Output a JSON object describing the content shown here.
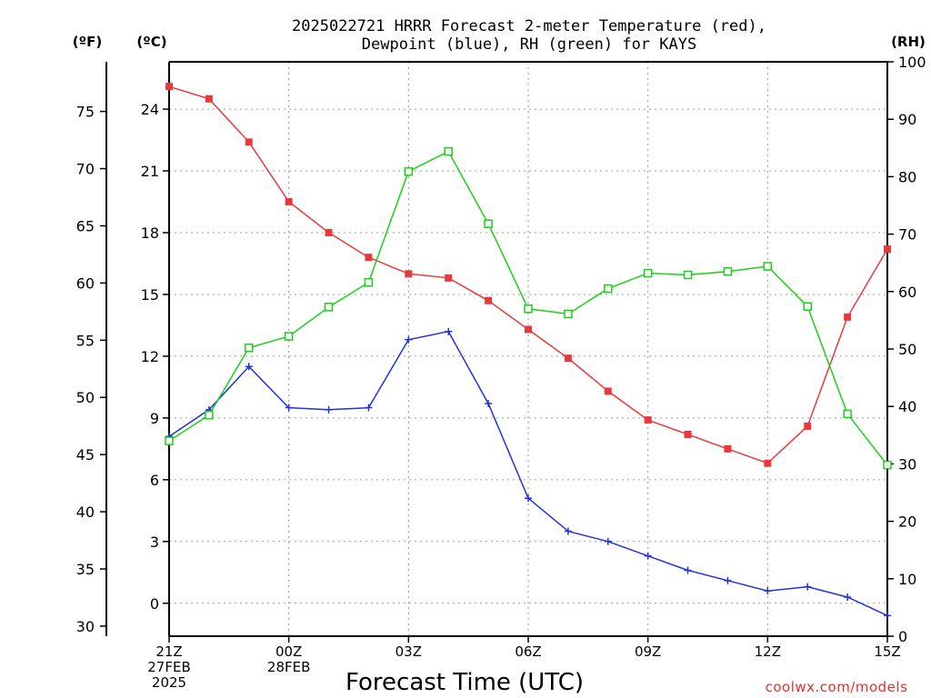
{
  "chart_data": {
    "type": "line",
    "title_line1": "2025022721 HRRR Forecast 2-meter Temperature (red),",
    "title_line2": "Dewpoint (blue), RH (green) for KAYS",
    "units": {
      "fahrenheit": "(ºF)",
      "celsius": "(ºC)",
      "rh": "(RH)"
    },
    "xlabel": "Forecast Time (UTC)",
    "credit": "coolwx.com/models",
    "x_ticks": [
      {
        "hour": 0,
        "lines": [
          "21Z",
          "27FEB",
          "2025"
        ]
      },
      {
        "hour": 3,
        "lines": [
          "00Z",
          "28FEB"
        ]
      },
      {
        "hour": 6,
        "lines": [
          "03Z"
        ]
      },
      {
        "hour": 9,
        "lines": [
          "06Z"
        ]
      },
      {
        "hour": 12,
        "lines": [
          "09Z"
        ]
      },
      {
        "hour": 15,
        "lines": [
          "12Z"
        ]
      },
      {
        "hour": 18,
        "lines": [
          "15Z"
        ]
      }
    ],
    "x_range": [
      0,
      18
    ],
    "celsius_axis": {
      "range": [
        -1.6,
        26.3
      ],
      "ticks": [
        0,
        3,
        6,
        9,
        12,
        15,
        18,
        21,
        24
      ]
    },
    "fahrenheit_ticks": [
      30,
      35,
      40,
      45,
      50,
      55,
      60,
      65,
      70,
      75
    ],
    "rh_axis": {
      "range": [
        0,
        100
      ],
      "ticks": [
        0,
        10,
        20,
        30,
        40,
        50,
        60,
        70,
        80,
        90,
        100
      ]
    },
    "grid": true,
    "series": [
      {
        "name": "Temperature",
        "color": "#e8393c",
        "marker": "filled-square",
        "axis": "celsius",
        "values": [
          25.1,
          24.5,
          22.4,
          19.5,
          18.0,
          16.8,
          16.0,
          15.8,
          14.7,
          13.3,
          11.9,
          10.3,
          8.9,
          8.2,
          7.5,
          6.8,
          8.6,
          13.9,
          17.2
        ]
      },
      {
        "name": "Dewpoint",
        "color": "#2233dd",
        "marker": "plus",
        "axis": "celsius",
        "values": [
          8.1,
          9.4,
          11.5,
          9.5,
          9.4,
          9.5,
          12.8,
          13.2,
          9.7,
          5.1,
          3.5,
          3.0,
          2.3,
          1.6,
          1.1,
          0.6,
          0.8,
          0.3,
          -0.6
        ]
      },
      {
        "name": "RH",
        "color": "#19d119",
        "marker": "open-square",
        "axis": "rh",
        "values": [
          34,
          38.5,
          50.2,
          52.2,
          57.3,
          61.6,
          80.9,
          84.4,
          71.8,
          57.0,
          56.1,
          60.5,
          63.2,
          62.9,
          63.5,
          64.4,
          57.4,
          38.7,
          29.8
        ]
      }
    ]
  }
}
